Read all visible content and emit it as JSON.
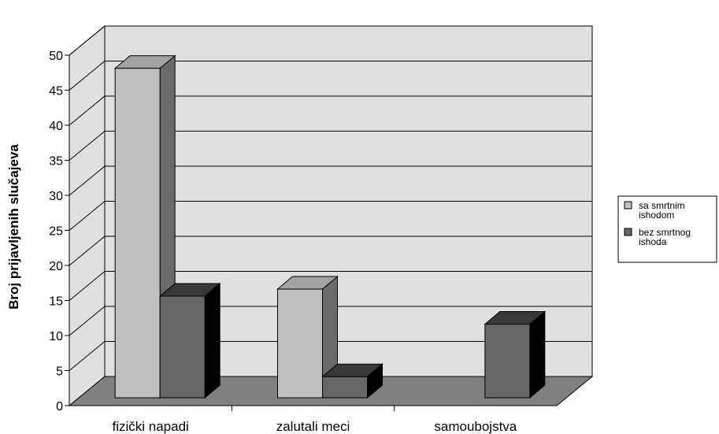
{
  "chart_data": {
    "type": "bar",
    "style": "3d-clustered-column",
    "categories": [
      "fizički napadi",
      "zalutali meci",
      "samoubojstva"
    ],
    "series": [
      {
        "name": "sa smrtnim ishodom",
        "values": [
          47,
          15.5,
          0
        ],
        "color": "#c0c0c0"
      },
      {
        "name": "bez smrtnog ishoda",
        "values": [
          14.5,
          3,
          10.5
        ],
        "color": "#666666"
      }
    ],
    "ylabel": "Broj prijavljenih slučajeva",
    "xlabel": "",
    "ylim": [
      0,
      50
    ],
    "yticks": [
      0,
      5,
      10,
      15,
      20,
      25,
      30,
      35,
      40,
      45,
      50
    ],
    "grid": true,
    "legend_position": "right",
    "colors": {
      "wall": "#e0e0e0",
      "floor": "#808080",
      "grid": "#000000"
    }
  }
}
